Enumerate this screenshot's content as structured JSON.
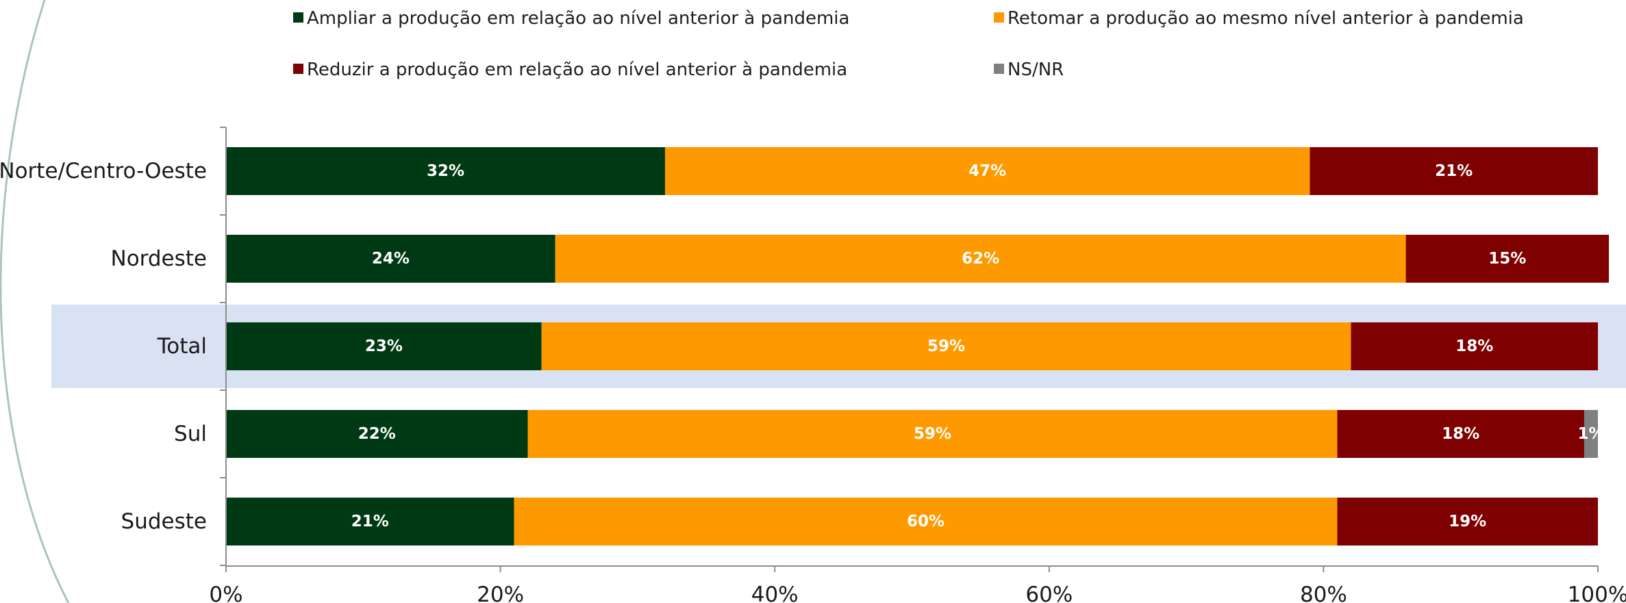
{
  "chart_data": {
    "type": "bar",
    "orientation": "horizontal",
    "stacked": true,
    "categories": [
      "Norte/Centro-Oeste",
      "Nordeste",
      "Total",
      "Sul",
      "Sudeste"
    ],
    "highlighted_category": "Total",
    "series": [
      {
        "name": "Ampliar a produção em relação ao nível anterior à pandemia",
        "color": "#003a15",
        "values": [
          32,
          24,
          23,
          22,
          21
        ],
        "labels": [
          "32%",
          "24%",
          "23%",
          "22%",
          "21%"
        ]
      },
      {
        "name": "Retomar a produção ao mesmo nível anterior à pandemia",
        "color": "#ff9900",
        "values": [
          47,
          62,
          59,
          59,
          60
        ],
        "labels": [
          "47%",
          "62%",
          "59%",
          "59%",
          "60%"
        ]
      },
      {
        "name": "Reduzir a produção em relação ao nível anterior à pandemia",
        "color": "#7f0000",
        "values": [
          21,
          14.8,
          18,
          18,
          19
        ],
        "labels": [
          "21%",
          "15%",
          "18%",
          "18%",
          "19%"
        ]
      },
      {
        "name": "NS/NR",
        "color": "#808080",
        "values": [
          0,
          0,
          0,
          1,
          0
        ],
        "labels": [
          "",
          "",
          "",
          "1%",
          ""
        ]
      }
    ],
    "xlim": [
      0,
      100
    ],
    "x_ticks": [
      "0%",
      "20%",
      "40%",
      "60%",
      "80%",
      "100%"
    ],
    "legend_position": "top",
    "grid": false,
    "highlight_color": "#d9e2f3",
    "decoration_color": "#a9c6bb"
  }
}
